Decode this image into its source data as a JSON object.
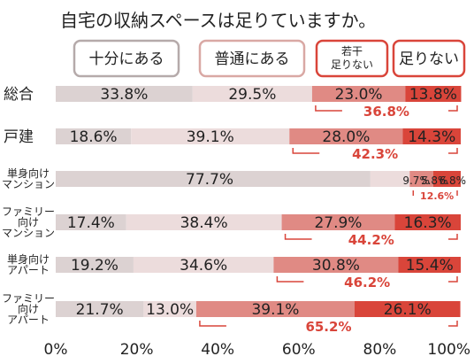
{
  "chart_data": {
    "type": "bar",
    "orientation": "horizontal",
    "stacked": true,
    "title": "自宅の収納スペースは足りていますか。",
    "categories": [
      {
        "label": "総合",
        "lines": [
          "総合"
        ]
      },
      {
        "label": "戸建",
        "lines": [
          "戸建"
        ]
      },
      {
        "label": "単身向けマンション",
        "lines": [
          "単身向け",
          "マンション"
        ]
      },
      {
        "label": "ファミリー向けマンション",
        "lines": [
          "ファミリー",
          "向け",
          "マンション"
        ]
      },
      {
        "label": "単身向けアパート",
        "lines": [
          "単身向け",
          "アパート"
        ]
      },
      {
        "label": "ファミリー向けアパート",
        "lines": [
          "ファミリー",
          "向け",
          "アパート"
        ]
      }
    ],
    "series": [
      {
        "name": "十分にある",
        "color": "#dcd2d2",
        "values": [
          33.8,
          18.6,
          77.7,
          17.4,
          19.2,
          21.7
        ]
      },
      {
        "name": "普通にある",
        "color": "#ecdcdc",
        "values": [
          29.5,
          39.1,
          9.7,
          38.4,
          34.6,
          13.0
        ]
      },
      {
        "name": "若干足りない",
        "lines": [
          "若干",
          "足りない"
        ],
        "color": "#e08a84",
        "values": [
          23.0,
          28.0,
          5.8,
          27.9,
          30.8,
          39.1
        ]
      },
      {
        "name": "足りない",
        "color": "#d9453a",
        "values": [
          13.8,
          14.3,
          6.8,
          16.3,
          15.4,
          26.1
        ]
      }
    ],
    "shortage_totals": [
      "36.8%",
      "42.3%",
      "12.6%",
      "44.2%",
      "46.2%",
      "65.2%"
    ],
    "value_labels": [
      [
        "33.8%",
        "29.5%",
        "23.0%",
        "13.8%"
      ],
      [
        "18.6%",
        "39.1%",
        "28.0%",
        "14.3%"
      ],
      [
        "77.7%",
        "9.7%",
        "5.8%",
        "6.8%"
      ],
      [
        "17.4%",
        "38.4%",
        "27.9%",
        "16.3%"
      ],
      [
        "19.2%",
        "34.6%",
        "30.8%",
        "15.4%"
      ],
      [
        "21.7%",
        "13.0%",
        "39.1%",
        "26.1%"
      ]
    ],
    "x_ticks": [
      {
        "value": 0,
        "label": "0%"
      },
      {
        "value": 20,
        "label": "20%"
      },
      {
        "value": 40,
        "label": "40%"
      },
      {
        "value": 60,
        "label": "60%"
      },
      {
        "value": 80,
        "label": "80%"
      },
      {
        "value": 100,
        "label": "100%"
      }
    ],
    "xlim": [
      0,
      100
    ],
    "grid": false,
    "legend_position": "top",
    "legend_border_colors": [
      "#b5aaaa",
      "#d9a8a4",
      "#d9453a",
      "#d9453a"
    ]
  }
}
